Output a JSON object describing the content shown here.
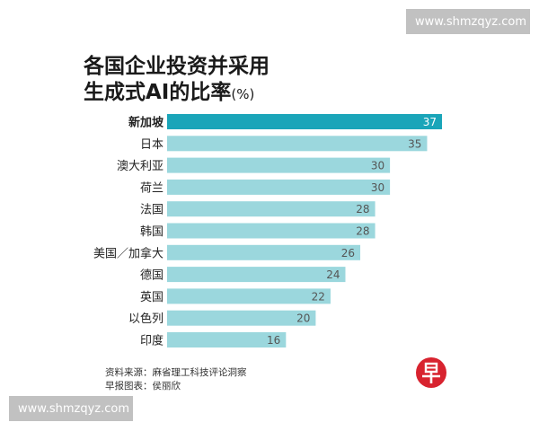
{
  "watermark_text": "www.shmzqyz.com",
  "title_line1": "各国企业投资并采用",
  "title_line2": "生成式AI的比率",
  "title_unit": "(%)",
  "source_line1": "资料来源：麻省理工科技评论洞察",
  "source_line2": "早报图表：侯丽欣",
  "logo_icon": "zaobao-logo-icon",
  "colors": {
    "highlight_bar": "#1aa5b9",
    "normal_bar": "#9bd7dd",
    "highlight_label": "#ffffff",
    "normal_label": "#555555",
    "category_text": "#222222",
    "logo_red": "#d8232f"
  },
  "chart_data": {
    "type": "bar",
    "orientation": "horizontal",
    "categories": [
      "新加坡",
      "日本",
      "澳大利亚",
      "荷兰",
      "法国",
      "韩国",
      "美国／加拿大",
      "德国",
      "英国",
      "以色列",
      "印度"
    ],
    "values": [
      37,
      35,
      30,
      30,
      28,
      28,
      26,
      24,
      22,
      20,
      16
    ],
    "highlight_index": 0,
    "xlim": [
      0,
      37
    ],
    "grid": false,
    "legend": "none"
  }
}
